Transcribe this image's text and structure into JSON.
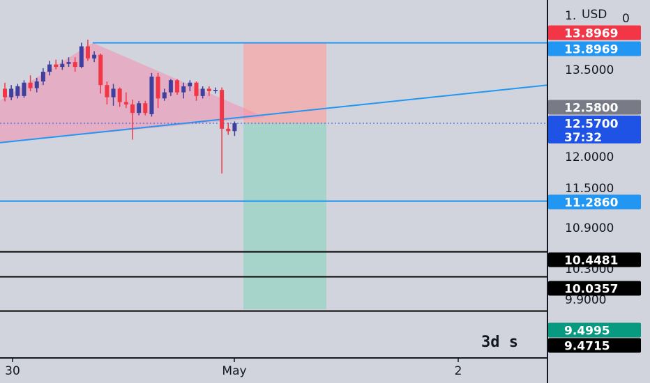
{
  "chart_data": {
    "type": "candlestick",
    "currency": "USD",
    "scale_label": "1",
    "top_axis_value": "0",
    "y_axis_ticks": [
      "13.5000",
      "12.0000",
      "11.5000",
      "10.9000",
      "10.3000",
      "9.9000"
    ],
    "x_axis_ticks": [
      "30",
      "May",
      "2"
    ],
    "overlay_text": "3d s",
    "price_tags": [
      {
        "value": "13.8969",
        "price": 13.8969,
        "color": "#f23645"
      },
      {
        "value": "13.8969",
        "price": 13.8969,
        "color": "#2196f3"
      },
      {
        "value": "12.5800",
        "price": 12.58,
        "color": "#787b86"
      },
      {
        "value": "12.5700",
        "countdown": "37:32",
        "price": 12.57,
        "color": "#1e53e5"
      },
      {
        "value": "11.2860",
        "price": 11.286,
        "color": "#2196f3"
      },
      {
        "value": "10.4481",
        "price": 10.4481,
        "color": "#000000"
      },
      {
        "value": "10.0357",
        "price": 10.0357,
        "color": "#000000"
      },
      {
        "value": "9.4995",
        "price": 9.4995,
        "color": "#089981"
      },
      {
        "value": "9.4715",
        "price": 9.4715,
        "color": "#000000"
      }
    ],
    "horizontal_lines": [
      {
        "price": 13.8969,
        "color": "#2196f3",
        "style": "solid",
        "start": 133
      },
      {
        "price": 12.57,
        "color": "#1e53e5",
        "style": "dotted",
        "start": 0
      },
      {
        "price": 11.286,
        "color": "#2196f3",
        "style": "solid",
        "start": 0
      },
      {
        "price": 10.4481,
        "color": "#000000",
        "style": "solid",
        "start": 0
      },
      {
        "price": 10.0357,
        "color": "#000000",
        "style": "solid",
        "start": 0
      },
      {
        "price": 9.4715,
        "color": "#000000",
        "style": "solid",
        "start": 0
      }
    ],
    "trend_line": {
      "x_start": 0,
      "price_start": 12.25,
      "x_end": 785,
      "price_end": 13.2,
      "color": "#2196f3"
    },
    "triangle_pattern": {
      "color": "#f48fb1",
      "opacity": 0.55
    },
    "position_box": {
      "entry": 12.57,
      "stop": 13.8969,
      "target": 9.4995,
      "profit_color": "#9fd3c7",
      "loss_color": "#f5a8a8"
    },
    "candles": [
      {
        "o": 13.14,
        "h": 13.24,
        "l": 12.93,
        "c": 13.0
      },
      {
        "o": 13.0,
        "h": 13.2,
        "l": 12.95,
        "c": 13.14
      },
      {
        "o": 13.02,
        "h": 13.22,
        "l": 12.98,
        "c": 13.18
      },
      {
        "o": 13.02,
        "h": 13.28,
        "l": 12.99,
        "c": 13.24
      },
      {
        "o": 13.24,
        "h": 13.36,
        "l": 13.1,
        "c": 13.15
      },
      {
        "o": 13.15,
        "h": 13.32,
        "l": 13.08,
        "c": 13.26
      },
      {
        "o": 13.26,
        "h": 13.48,
        "l": 13.2,
        "c": 13.42
      },
      {
        "o": 13.42,
        "h": 13.6,
        "l": 13.36,
        "c": 13.54
      },
      {
        "o": 13.54,
        "h": 13.62,
        "l": 13.46,
        "c": 13.5
      },
      {
        "o": 13.5,
        "h": 13.62,
        "l": 13.45,
        "c": 13.55
      },
      {
        "o": 13.55,
        "h": 13.66,
        "l": 13.5,
        "c": 13.58
      },
      {
        "o": 13.58,
        "h": 13.66,
        "l": 13.42,
        "c": 13.5
      },
      {
        "o": 13.5,
        "h": 13.9,
        "l": 13.48,
        "c": 13.84
      },
      {
        "o": 13.84,
        "h": 13.95,
        "l": 13.6,
        "c": 13.64
      },
      {
        "o": 13.64,
        "h": 13.76,
        "l": 13.58,
        "c": 13.7
      },
      {
        "o": 13.7,
        "h": 13.72,
        "l": 13.06,
        "c": 13.2
      },
      {
        "o": 13.2,
        "h": 13.26,
        "l": 12.88,
        "c": 13.0
      },
      {
        "o": 13.0,
        "h": 13.22,
        "l": 12.86,
        "c": 13.14
      },
      {
        "o": 13.14,
        "h": 13.16,
        "l": 12.84,
        "c": 12.92
      },
      {
        "o": 12.92,
        "h": 13.08,
        "l": 12.82,
        "c": 12.88
      },
      {
        "o": 12.88,
        "h": 12.96,
        "l": 12.3,
        "c": 12.74
      },
      {
        "o": 12.74,
        "h": 12.94,
        "l": 12.7,
        "c": 12.9
      },
      {
        "o": 12.9,
        "h": 12.94,
        "l": 12.7,
        "c": 12.74
      },
      {
        "o": 12.72,
        "h": 13.4,
        "l": 12.68,
        "c": 13.34
      },
      {
        "o": 13.34,
        "h": 13.4,
        "l": 12.82,
        "c": 12.98
      },
      {
        "o": 12.98,
        "h": 13.14,
        "l": 12.94,
        "c": 13.08
      },
      {
        "o": 13.08,
        "h": 13.3,
        "l": 13.02,
        "c": 13.28
      },
      {
        "o": 13.28,
        "h": 13.3,
        "l": 13.04,
        "c": 13.08
      },
      {
        "o": 13.08,
        "h": 13.24,
        "l": 12.98,
        "c": 13.18
      },
      {
        "o": 13.18,
        "h": 13.28,
        "l": 13.1,
        "c": 13.24
      },
      {
        "o": 13.24,
        "h": 13.26,
        "l": 12.94,
        "c": 13.02
      },
      {
        "o": 13.02,
        "h": 13.18,
        "l": 12.98,
        "c": 13.14
      },
      {
        "o": 13.14,
        "h": 13.18,
        "l": 13.02,
        "c": 13.1
      },
      {
        "o": 13.1,
        "h": 13.16,
        "l": 13.06,
        "c": 13.12
      },
      {
        "o": 13.12,
        "h": 13.16,
        "l": 11.74,
        "c": 12.48
      },
      {
        "o": 12.48,
        "h": 12.58,
        "l": 12.38,
        "c": 12.44
      },
      {
        "o": 12.44,
        "h": 12.6,
        "l": 12.36,
        "c": 12.57
      }
    ]
  }
}
